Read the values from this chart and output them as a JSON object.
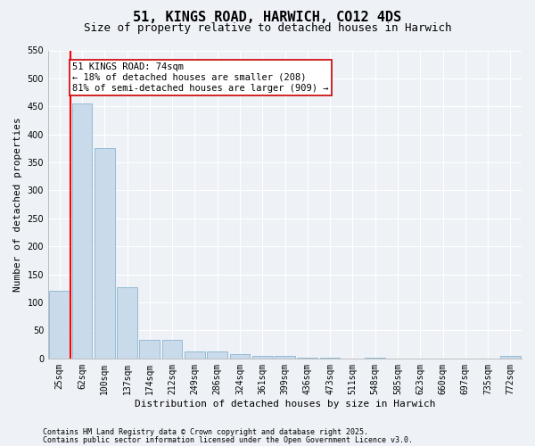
{
  "title": "51, KINGS ROAD, HARWICH, CO12 4DS",
  "subtitle": "Size of property relative to detached houses in Harwich",
  "xlabel": "Distribution of detached houses by size in Harwich",
  "ylabel": "Number of detached properties",
  "categories": [
    "25sqm",
    "62sqm",
    "100sqm",
    "137sqm",
    "174sqm",
    "212sqm",
    "249sqm",
    "286sqm",
    "324sqm",
    "361sqm",
    "399sqm",
    "436sqm",
    "473sqm",
    "511sqm",
    "548sqm",
    "585sqm",
    "623sqm",
    "660sqm",
    "697sqm",
    "735sqm",
    "772sqm"
  ],
  "values": [
    120,
    455,
    375,
    127,
    33,
    33,
    13,
    13,
    8,
    5,
    5,
    1,
    2,
    0,
    1,
    0,
    0,
    0,
    0,
    0,
    5
  ],
  "bar_color": "#c9daea",
  "bar_edge_color": "#89b4d0",
  "red_line_index": 1,
  "annotation_text": "51 KINGS ROAD: 74sqm\n← 18% of detached houses are smaller (208)\n81% of semi-detached houses are larger (909) →",
  "annotation_box_color": "#ffffff",
  "annotation_border_color": "#cc0000",
  "ylim": [
    0,
    550
  ],
  "yticks": [
    0,
    50,
    100,
    150,
    200,
    250,
    300,
    350,
    400,
    450,
    500,
    550
  ],
  "footer_line1": "Contains HM Land Registry data © Crown copyright and database right 2025.",
  "footer_line2": "Contains public sector information licensed under the Open Government Licence v3.0.",
  "background_color": "#eef2f7",
  "grid_color": "#ffffff",
  "title_fontsize": 11,
  "subtitle_fontsize": 9,
  "tick_fontsize": 7,
  "ylabel_fontsize": 8,
  "xlabel_fontsize": 8,
  "annotation_fontsize": 7.5,
  "footer_fontsize": 6
}
